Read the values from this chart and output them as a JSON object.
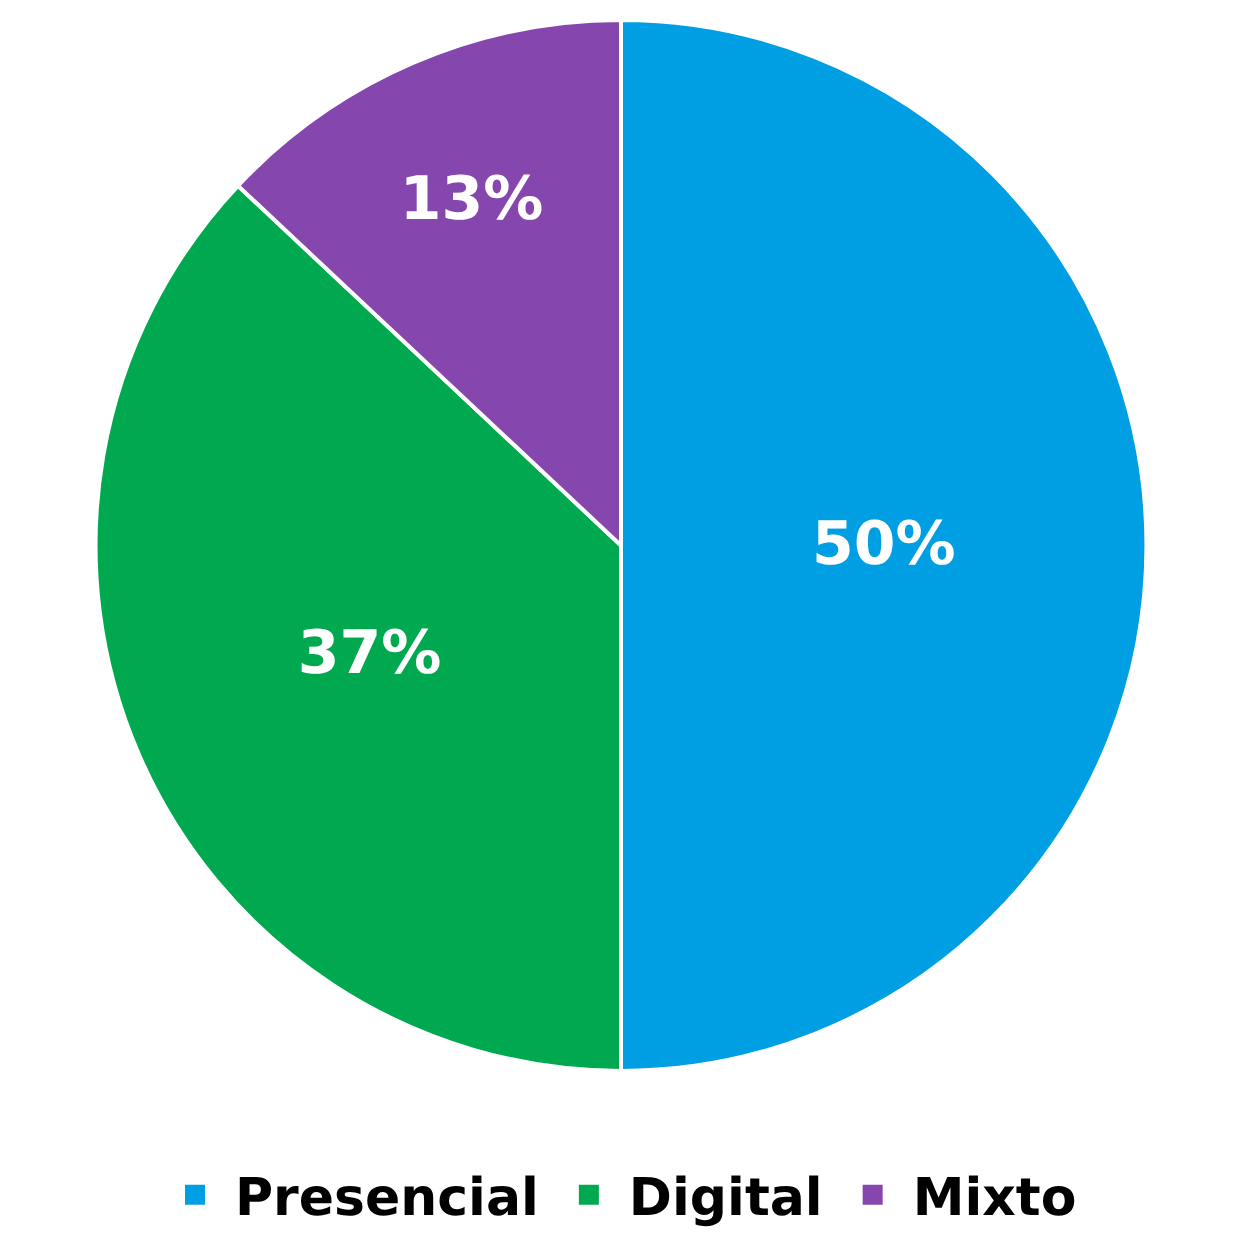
{
  "chart_data": {
    "type": "pie",
    "categories": [
      "Presencial",
      "Digital",
      "Mixto"
    ],
    "values": [
      50,
      37,
      13
    ],
    "colors": [
      "#009fe3",
      "#00a94f",
      "#8547ad"
    ],
    "value_labels": [
      "50%",
      "37%",
      "13%"
    ],
    "legend": "bottom"
  }
}
